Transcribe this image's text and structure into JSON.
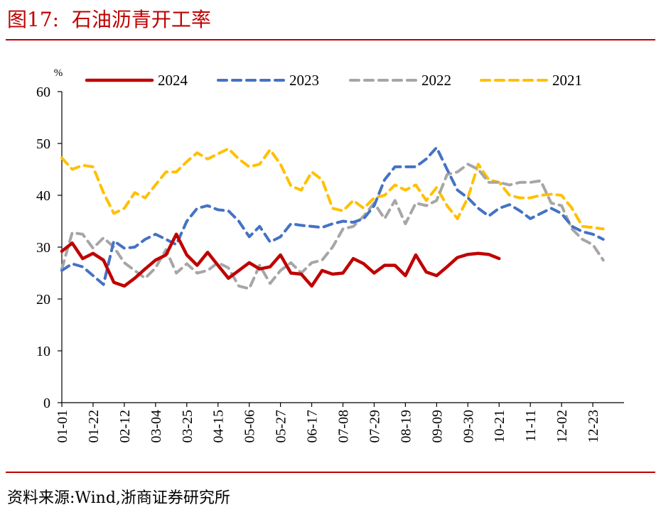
{
  "title": "图17:  石油沥青开工率",
  "source": "资料来源:Wind,浙商证券研究所",
  "chart_data": {
    "type": "line",
    "ylabel": "%",
    "ylim": [
      0,
      60
    ],
    "yticks": [
      0,
      10,
      20,
      30,
      40,
      50,
      60
    ],
    "x_range": [
      0,
      54
    ],
    "xticks": [
      {
        "i": 0,
        "label": "01-01"
      },
      {
        "i": 3,
        "label": "01-22"
      },
      {
        "i": 6,
        "label": "02-12"
      },
      {
        "i": 9,
        "label": "03-04"
      },
      {
        "i": 12,
        "label": "03-25"
      },
      {
        "i": 15,
        "label": "04-15"
      },
      {
        "i": 18,
        "label": "05-06"
      },
      {
        "i": 21,
        "label": "05-27"
      },
      {
        "i": 24,
        "label": "06-17"
      },
      {
        "i": 27,
        "label": "07-08"
      },
      {
        "i": 30,
        "label": "07-29"
      },
      {
        "i": 33,
        "label": "08-19"
      },
      {
        "i": 36,
        "label": "09-09"
      },
      {
        "i": 39,
        "label": "09-30"
      },
      {
        "i": 42,
        "label": "10-21"
      },
      {
        "i": 45,
        "label": "11-11"
      },
      {
        "i": 48,
        "label": "12-02"
      },
      {
        "i": 51,
        "label": "12-23"
      }
    ],
    "legend_position": "top",
    "grid": false,
    "series": [
      {
        "name": "2024",
        "color": "#C00000",
        "dash": "solid",
        "values": [
          29.2,
          30.8,
          27.8,
          28.8,
          27.5,
          23.2,
          22.5,
          24.0,
          25.8,
          27.5,
          28.5,
          32.5,
          28.5,
          26.5,
          29.0,
          26.5,
          24.0,
          25.5,
          27.0,
          25.8,
          26.2,
          28.5,
          25.0,
          24.8,
          22.5,
          25.5,
          24.8,
          25.0,
          27.8,
          26.8,
          25.0,
          26.5,
          26.5,
          24.5,
          28.5,
          25.2,
          24.5,
          26.2,
          28.0,
          28.6,
          28.8,
          28.6,
          27.8
        ]
      },
      {
        "name": "2023",
        "color": "#4472C4",
        "dash": "dashed",
        "values": [
          25.5,
          26.8,
          26.2,
          24.5,
          22.8,
          31.2,
          29.8,
          30.0,
          31.5,
          32.5,
          31.5,
          30.5,
          35.0,
          37.5,
          38.0,
          37.2,
          37.0,
          35.0,
          32.0,
          34.0,
          31.0,
          32.0,
          34.5,
          34.2,
          34.0,
          33.8,
          34.5,
          35.0,
          34.8,
          35.5,
          38.0,
          43.0,
          45.5,
          45.5,
          45.5,
          47.0,
          49.2,
          45.0,
          41.0,
          39.5,
          37.5,
          36.0,
          37.5,
          38.2,
          37.0,
          35.5,
          36.5,
          37.5,
          36.5,
          34.0,
          33.0,
          32.5,
          31.5
        ]
      },
      {
        "name": "2022",
        "color": "#A6A6A6",
        "dash": "dashed",
        "values": [
          25.8,
          32.8,
          32.5,
          29.8,
          31.8,
          30.0,
          27.0,
          25.5,
          24.0,
          26.0,
          29.5,
          25.0,
          26.8,
          25.0,
          25.5,
          27.0,
          26.0,
          22.5,
          22.0,
          26.5,
          23.0,
          25.5,
          27.0,
          25.0,
          27.0,
          27.5,
          30.0,
          33.5,
          34.0,
          36.0,
          38.5,
          35.5,
          39.0,
          34.5,
          38.5,
          38.0,
          39.0,
          44.0,
          44.5,
          46.0,
          45.0,
          42.5,
          42.5,
          42.0,
          42.5,
          42.5,
          42.8,
          38.5,
          38.0,
          33.5,
          31.5,
          30.5,
          27.5
        ]
      },
      {
        "name": "2021",
        "color": "#FFC000",
        "dash": "dashed",
        "values": [
          47.2,
          45.0,
          45.8,
          45.5,
          40.5,
          36.5,
          37.5,
          40.5,
          39.5,
          42.0,
          44.5,
          44.5,
          46.5,
          48.2,
          47.0,
          48.0,
          49.0,
          47.0,
          45.5,
          46.0,
          48.8,
          46.0,
          41.8,
          41.0,
          44.5,
          43.0,
          37.5,
          37.0,
          39.0,
          37.5,
          39.5,
          40.0,
          42.0,
          41.0,
          42.0,
          39.0,
          41.5,
          38.0,
          35.5,
          39.5,
          46.0,
          43.0,
          42.5,
          40.0,
          39.5,
          39.5,
          40.0,
          40.2,
          40.0,
          37.5,
          34.0,
          33.8,
          33.5
        ]
      }
    ]
  }
}
